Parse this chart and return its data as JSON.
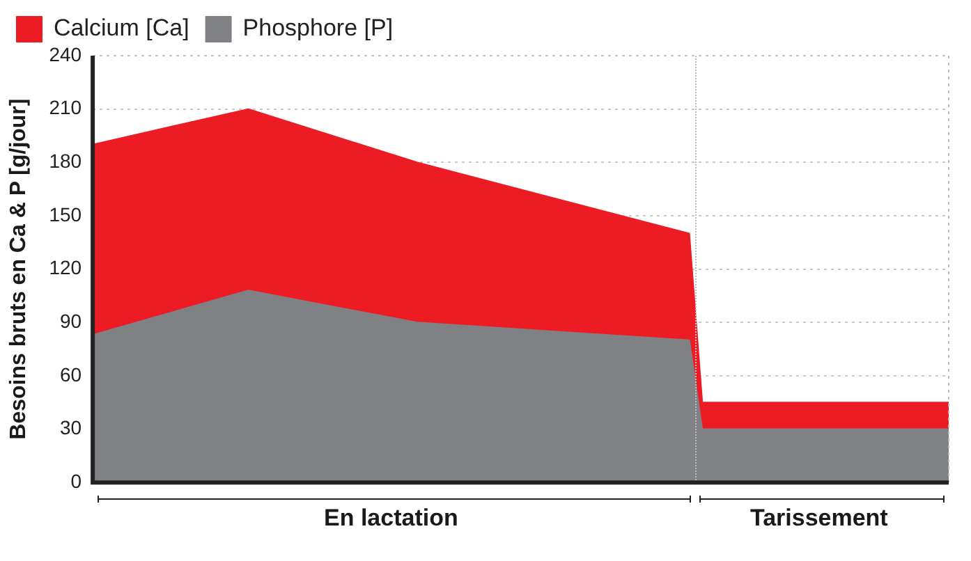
{
  "chart_data": {
    "type": "area",
    "ylabel": "Besoins bruts en Ca & P [g/jour]",
    "categories": [
      null,
      null,
      null,
      null,
      null,
      null,
      null,
      null,
      null,
      null,
      null,
      null,
      null,
      null,
      null,
      null,
      null,
      null,
      null,
      null,
      null,
      null,
      null,
      "En lactation",
      null,
      null,
      null,
      null,
      null,
      null,
      null,
      null,
      null,
      null,
      null,
      null,
      null,
      null,
      null,
      null,
      null,
      null,
      null,
      null,
      null,
      null,
      null,
      null,
      null,
      null,
      null,
      null,
      null,
      null,
      null,
      null,
      "Tarissement",
      null,
      null,
      null,
      null,
      null,
      null,
      null,
      null,
      null,
      null
    ],
    "series": [
      {
        "name": "Calcium [Ca]",
        "color": "#ed1c24",
        "values": [
          190,
          null,
          null,
          null,
          null,
          null,
          null,
          null,
          null,
          null,
          null,
          null,
          210,
          null,
          null,
          null,
          null,
          null,
          null,
          null,
          null,
          null,
          null,
          null,
          null,
          180,
          null,
          null,
          null,
          null,
          null,
          null,
          null,
          null,
          null,
          null,
          null,
          null,
          null,
          null,
          null,
          null,
          null,
          null,
          null,
          null,
          140,
          45,
          null,
          null,
          null,
          null,
          null,
          null,
          null,
          null,
          null,
          null,
          null,
          null,
          null,
          null,
          null,
          null,
          null,
          null,
          45
        ]
      },
      {
        "name": "Phosphore [P]",
        "color": "#808184",
        "values": [
          83,
          null,
          null,
          null,
          null,
          null,
          null,
          null,
          null,
          null,
          null,
          null,
          108,
          null,
          null,
          null,
          null,
          null,
          null,
          null,
          null,
          null,
          null,
          null,
          null,
          90,
          null,
          null,
          null,
          null,
          null,
          null,
          null,
          null,
          null,
          null,
          null,
          null,
          null,
          null,
          null,
          null,
          null,
          null,
          null,
          null,
          80,
          30,
          null,
          null,
          null,
          null,
          null,
          null,
          null,
          null,
          null,
          null,
          null,
          null,
          null,
          null,
          null,
          null,
          null,
          null,
          30
        ]
      }
    ],
    "ylim": [
      0,
      240
    ],
    "yticks": [
      0,
      30,
      60,
      90,
      120,
      150,
      180,
      210,
      240
    ],
    "grid": "y",
    "legend": "top left"
  }
}
